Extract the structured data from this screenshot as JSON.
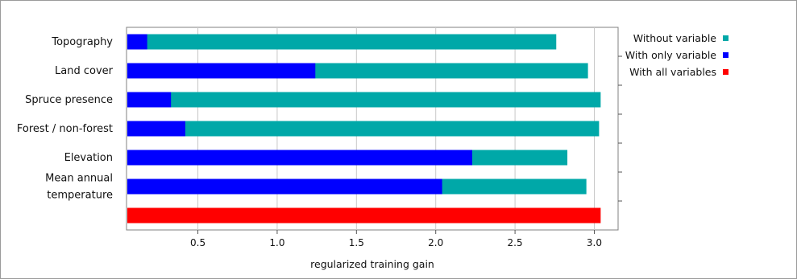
{
  "chart_data": {
    "type": "bar",
    "orientation": "horizontal",
    "categories": [
      [
        "Topography"
      ],
      [
        "Land cover"
      ],
      [
        "Spruce presence"
      ],
      [
        "Forest / non-forest"
      ],
      [
        "Elevation"
      ],
      [
        "Mean annual",
        "temperature"
      ],
      [
        ""
      ]
    ],
    "series": [
      {
        "name": "Without variable",
        "color": "#00a8a8",
        "values": [
          2.76,
          2.96,
          3.04,
          3.03,
          2.83,
          2.95,
          null
        ]
      },
      {
        "name": "With only variable",
        "color": "#0000ff",
        "values": [
          0.18,
          1.24,
          0.33,
          0.42,
          2.23,
          2.04,
          null
        ]
      },
      {
        "name": "With all variables",
        "color": "#ff0000",
        "values": [
          null,
          null,
          null,
          null,
          null,
          null,
          3.04
        ]
      }
    ],
    "xlabel": "regularized training gain",
    "xlim": [
      0.05,
      3.15
    ],
    "xticks": [
      0.5,
      1.0,
      1.5,
      2.0,
      2.5,
      3.0
    ],
    "xtick_labels": [
      "0.5",
      "1.0",
      "1.5",
      "2.0",
      "2.5",
      "3.0"
    ],
    "grid": true,
    "legend_position": "top-right"
  }
}
